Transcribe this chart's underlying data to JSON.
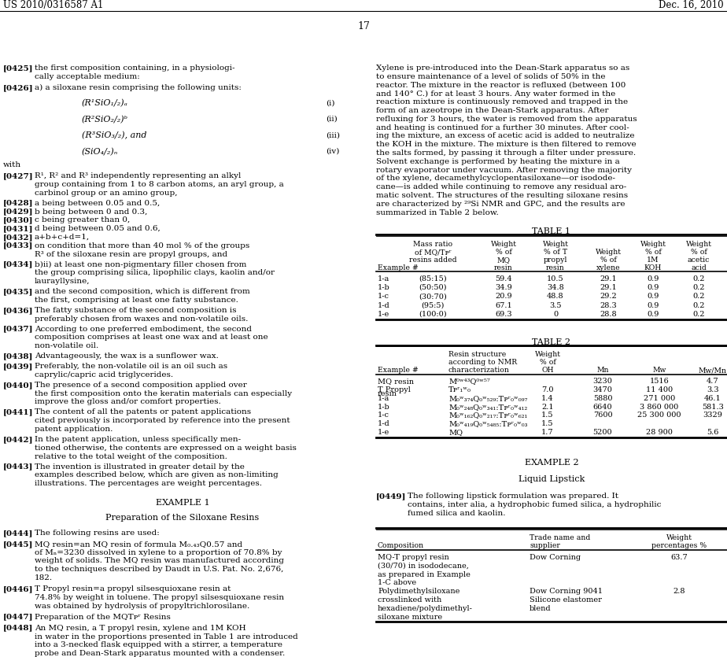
{
  "page_number": "17",
  "patent_number": "US 2010/0316587 A1",
  "patent_date": "Dec. 16, 2010"
}
